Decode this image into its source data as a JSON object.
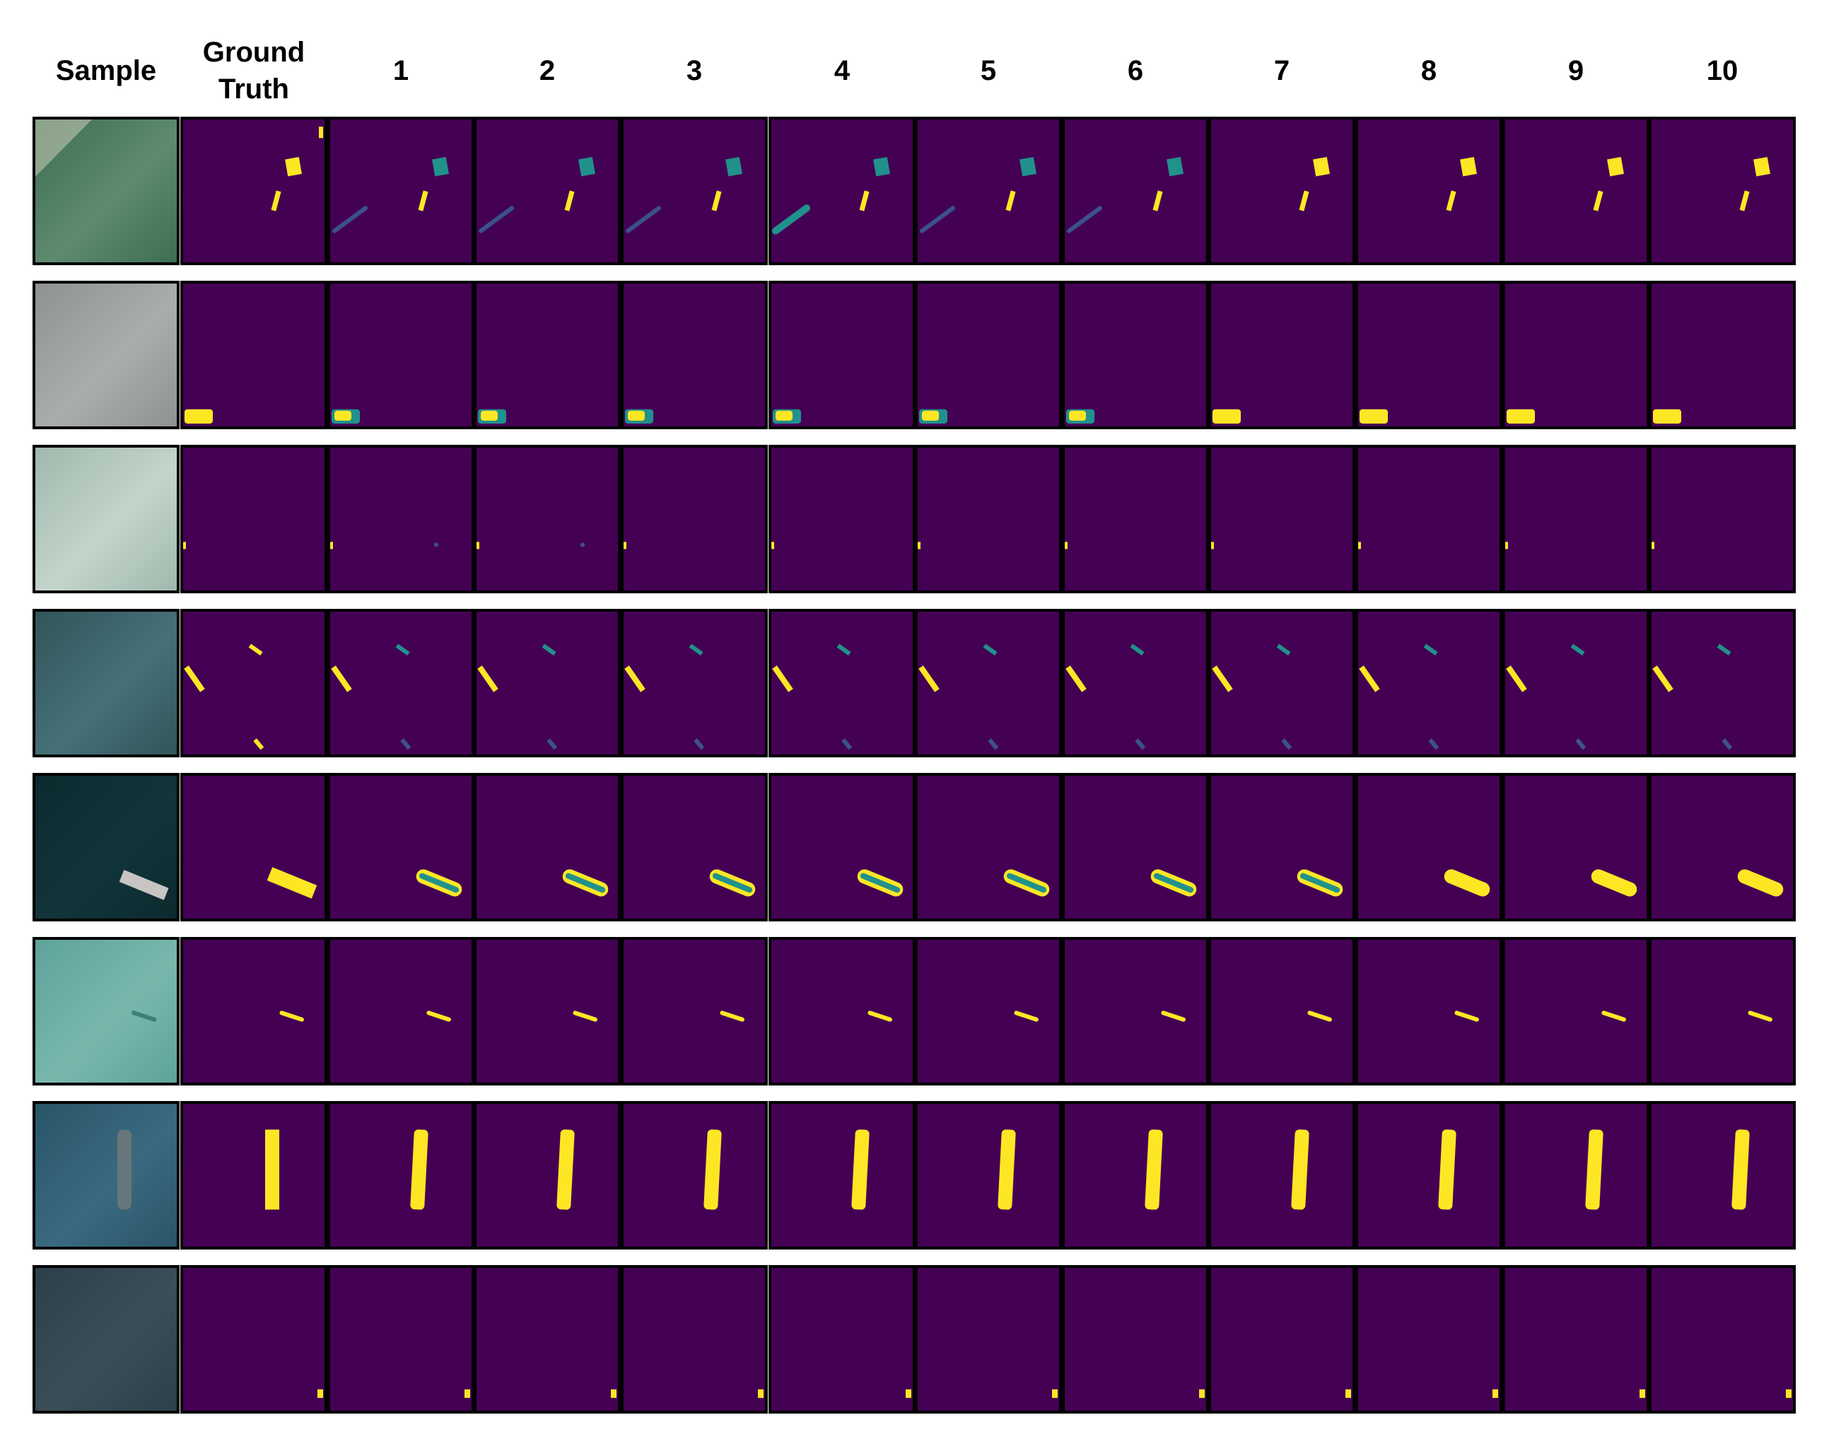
{
  "figure": {
    "headers": [
      "Sample",
      "Ground Truth",
      "1",
      "2",
      "3",
      "4",
      "5",
      "6",
      "7",
      "8",
      "9",
      "10"
    ],
    "colors": {
      "mask_background": "#440154",
      "mask_foreground": "#fde725",
      "mask_partial": "#21918c",
      "mask_faint": "#3b528b"
    },
    "rows": [
      {
        "sample_colors": [
          "#3d6e52",
          "#5e8a70",
          "#d9d6c4"
        ]
      },
      {
        "sample_colors": [
          "#8e9292",
          "#a9adac",
          "#6f7473"
        ]
      },
      {
        "sample_colors": [
          "#9fb8ad",
          "#c4d5cc",
          "#7e9488"
        ]
      },
      {
        "sample_colors": [
          "#31555a",
          "#467078",
          "#6d8c8c"
        ]
      },
      {
        "sample_colors": [
          "#0b2a2e",
          "#12353a",
          "#c9c4c4"
        ]
      },
      {
        "sample_colors": [
          "#5ea39a",
          "#79b7ad",
          "#3d7f76"
        ]
      },
      {
        "sample_colors": [
          "#2a5468",
          "#3a6a80",
          "#67767a"
        ]
      },
      {
        "sample_colors": [
          "#2d3f4a",
          "#3b4e58",
          "#25343c"
        ]
      }
    ]
  }
}
